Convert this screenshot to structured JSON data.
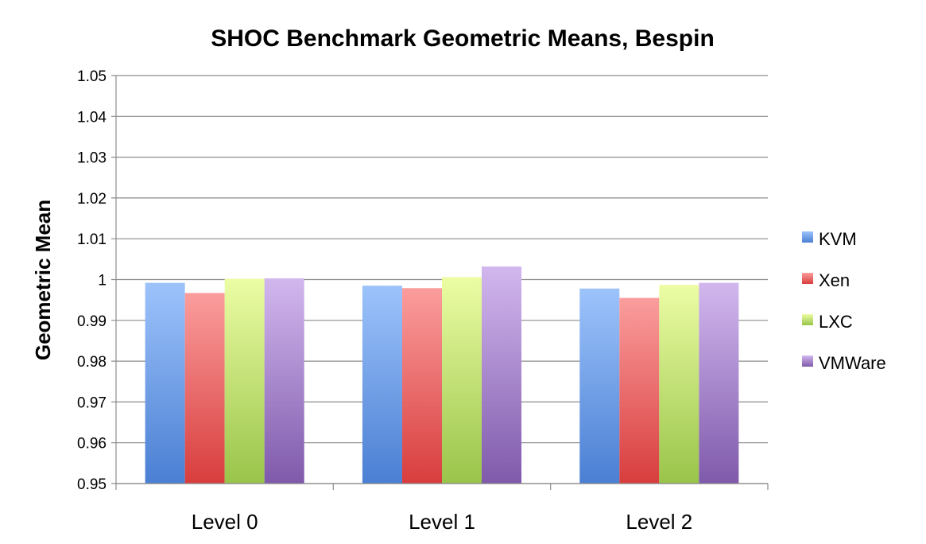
{
  "chart_data": {
    "type": "bar",
    "title": "SHOC Benchmark Geometric Means, Bespin",
    "xlabel": "",
    "ylabel": "Geometric Mean",
    "ylim": [
      0.95,
      1.05
    ],
    "yticks": [
      "0.95",
      "0.96",
      "0.97",
      "0.98",
      "0.99",
      "1",
      "1.01",
      "1.02",
      "1.03",
      "1.04",
      "1.05"
    ],
    "categories": [
      "Level 0",
      "Level 1",
      "Level 2"
    ],
    "grid": true,
    "legend_position": "right",
    "series": [
      {
        "name": "KVM",
        "values": [
          0.9992,
          0.9985,
          0.9978
        ],
        "color": "#4a7fd3",
        "color_light": "#9dc3fb"
      },
      {
        "name": "Xen",
        "values": [
          0.9967,
          0.9979,
          0.9955
        ],
        "color": "#d83d3d",
        "color_light": "#fb9d9d"
      },
      {
        "name": "LXC",
        "values": [
          1.0002,
          1.0006,
          0.9987
        ],
        "color": "#99c44a",
        "color_light": "#ecfda4"
      },
      {
        "name": "VMWare",
        "values": [
          1.0003,
          1.0032,
          0.9992
        ],
        "color": "#7f5aab",
        "color_light": "#d2b7ee"
      }
    ]
  }
}
